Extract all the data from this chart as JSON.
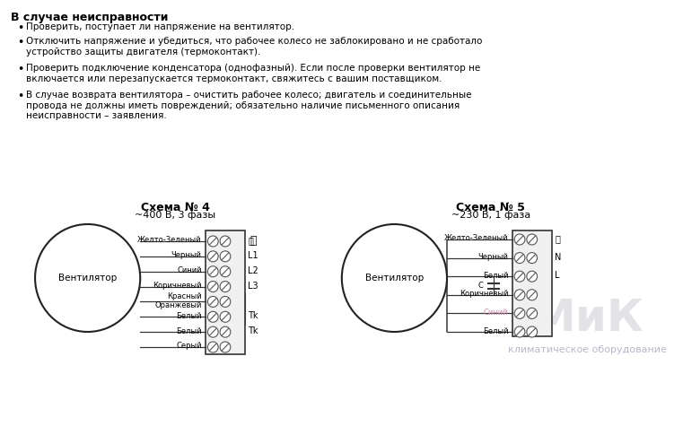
{
  "title_bold": "В случае неисправности",
  "bullets": [
    "Проверить, поступает ли напряжение на вентилятор.",
    "Отключить напряжение и убедиться, что рабочее колесо не заблокировано и не сработало\nустройство защиты двигателя (термоконтакт).",
    "Проверить подключение конденсатора (однофазный). Если после проверки вентилятор не\nвключается или перезапускается термоконтакт, свяжитесь с вашим поставщиком.",
    "В случае возврата вентилятора – очистить рабочее колесо; двигатель и соединительные\nпровода не должны иметь повреждений; обязательно наличие письменного описания\nнеисправности – заявления."
  ],
  "schema4_title": "Схема № 4",
  "schema4_subtitle": "~400 В, 3 фазы",
  "schema5_title": "Схема № 5",
  "schema5_subtitle": "~230 В, 1 фаза",
  "schema4_wires": [
    "Желто-Зеленый",
    "Черный",
    "Синий",
    "Коричневый",
    "Красный\nОранжевый",
    "Белый",
    "Белый",
    "Серый"
  ],
  "schema4_labels": [
    "⏚",
    "L1",
    "L2",
    "L3",
    "",
    "Tk",
    "Tk",
    ""
  ],
  "schema5_wires": [
    "Желто-Зеленый",
    "Черный",
    "Белый",
    "Коричневый",
    "Синий",
    "Белый"
  ],
  "schema5_labels": [
    "⏚",
    "N",
    "L",
    "",
    "",
    ""
  ],
  "watermark_line1": "МиК",
  "watermark_line2": "климатическое оборудование",
  "bg_color": "#ffffff",
  "text_color": "#000000",
  "light_gray": "#aaaaaa",
  "border_color": "#333333"
}
